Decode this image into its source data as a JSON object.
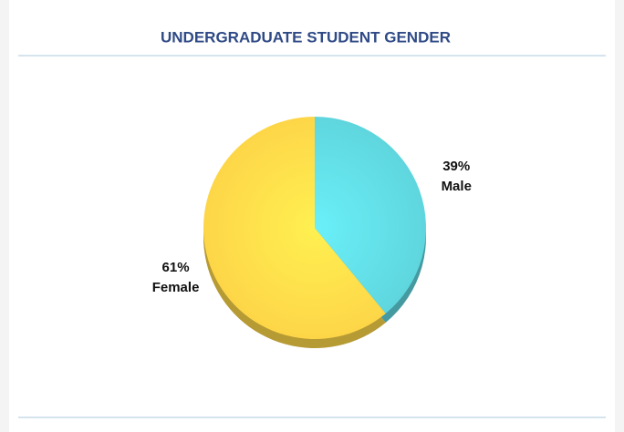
{
  "chart_data": {
    "type": "pie",
    "title": "UNDERGRADUATE STUDENT GENDER",
    "categories": [
      "Male",
      "Female"
    ],
    "values": [
      39,
      61
    ],
    "value_labels": [
      "39%",
      "61%"
    ],
    "colors": [
      "#5fd6de",
      "#fdd648"
    ]
  }
}
